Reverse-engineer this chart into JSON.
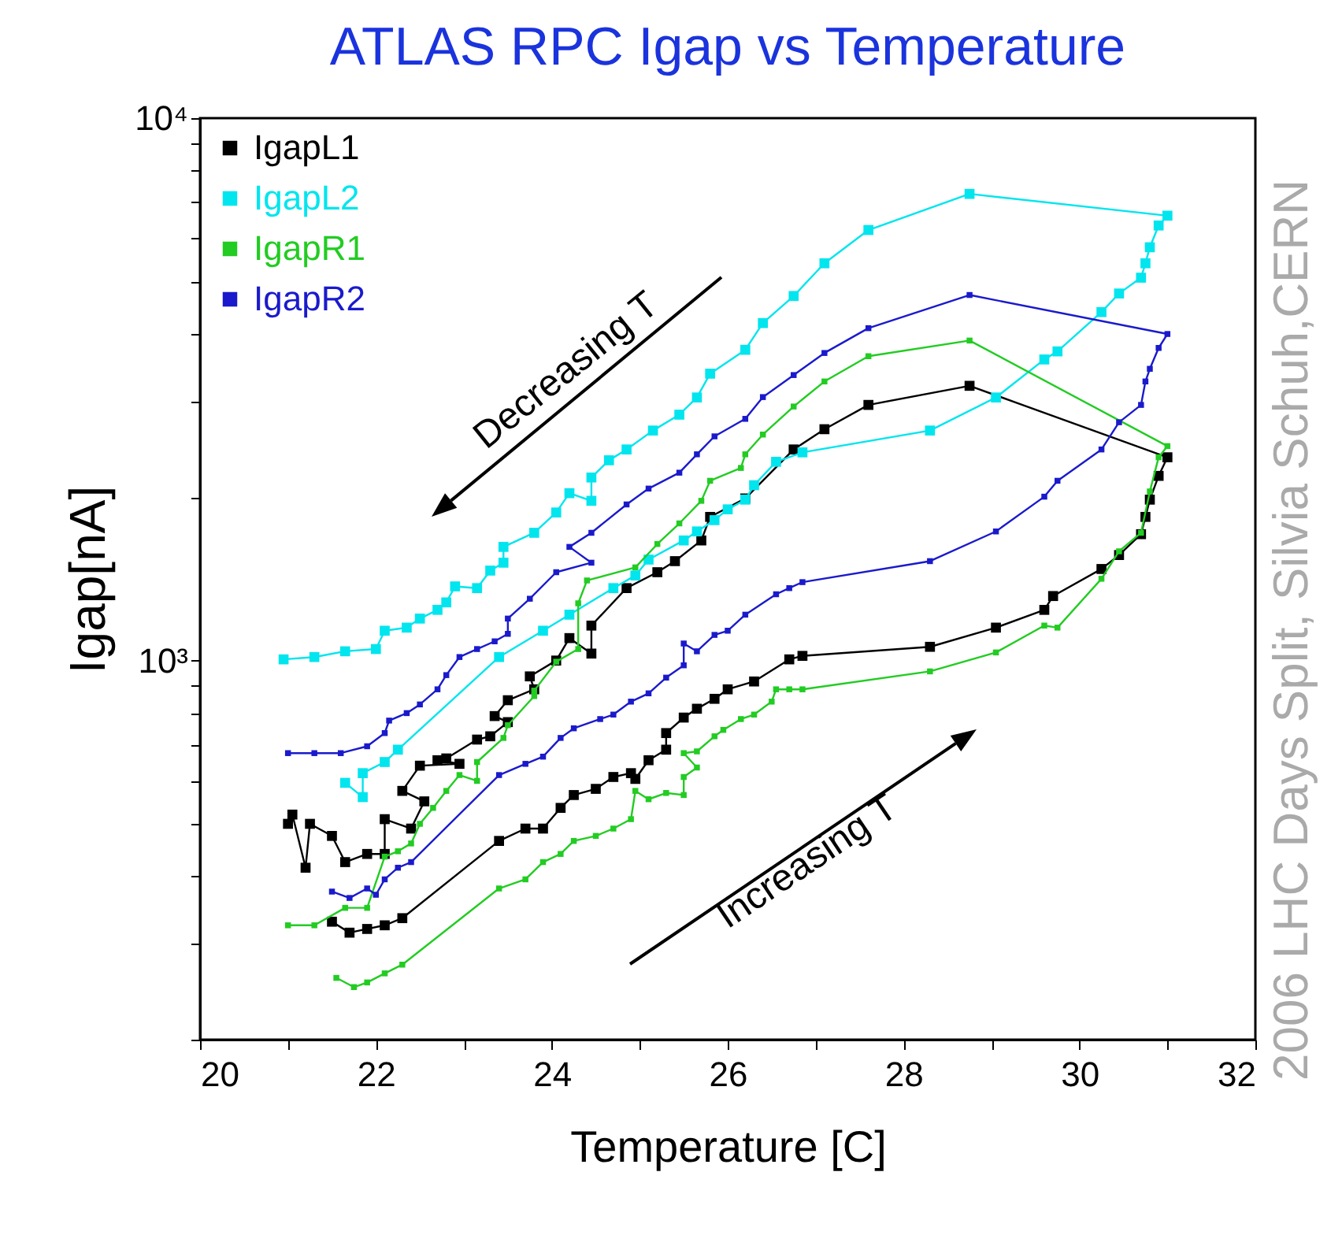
{
  "chart_data": {
    "type": "line",
    "title": "ATLAS RPC Igap vs Temperature",
    "xlabel": "Temperature [C]",
    "ylabel": "Igap[nA]",
    "annotations": [
      "Decreasing T",
      "Increasing T",
      "2006 LHC Days Split, Silvia Schuh,CERN"
    ],
    "xlim": [
      20,
      32
    ],
    "xticks": [
      20,
      {
        "value": 21,
        "label": null
      },
      22,
      {
        "value": 23,
        "label": null
      },
      24,
      {
        "value": 25,
        "label": null
      },
      26,
      {
        "value": 27,
        "label": null
      },
      28,
      {
        "value": 29,
        "label": null
      },
      30,
      {
        "value": 31,
        "label": null
      },
      32
    ],
    "ylim": [
      200,
      10000
    ],
    "log": "y",
    "yticks": [
      {
        "value": 200,
        "label": null
      },
      {
        "value": 300,
        "label": null
      },
      {
        "value": 400,
        "label": null
      },
      {
        "value": 500,
        "label": null
      },
      {
        "value": 600,
        "label": null
      },
      {
        "value": 700,
        "label": null
      },
      {
        "value": 800,
        "label": null
      },
      {
        "value": 900,
        "label": null
      },
      {
        "value": 1000,
        "label": "10³"
      },
      {
        "value": 2000,
        "label": null
      },
      {
        "value": 3000,
        "label": null
      },
      {
        "value": 4000,
        "label": null
      },
      {
        "value": 5000,
        "label": null
      },
      {
        "value": 6000,
        "label": null
      },
      {
        "value": 7000,
        "label": null
      },
      {
        "value": 8000,
        "label": null
      },
      {
        "value": 9000,
        "label": null
      },
      {
        "value": 10000,
        "label": "10⁴"
      }
    ],
    "legend": "top left",
    "marker": "square",
    "series": [
      {
        "name": "IgapL1",
        "color": "#000000",
        "x": [
          21.5,
          21.7,
          21.9,
          22.1,
          22.3,
          23.4,
          23.7,
          23.9,
          24.1,
          24.25,
          24.5,
          24.7,
          24.9,
          24.95,
          25.1,
          25.3,
          25.3,
          25.5,
          25.65,
          25.85,
          26.0,
          26.3,
          26.7,
          26.85,
          28.3,
          29.05,
          29.6,
          29.7,
          30.25,
          30.45,
          30.7,
          30.75,
          30.8,
          30.9,
          31.0,
          28.75,
          27.6,
          27.1,
          26.75,
          26.2,
          25.8,
          25.7,
          25.4,
          25.2,
          24.85,
          24.45,
          24.45,
          24.2,
          24.05,
          23.75,
          23.8,
          23.5,
          23.35,
          23.5,
          23.3,
          23.15,
          22.8,
          22.7,
          22.95,
          22.5,
          22.3,
          22.55,
          22.4,
          22.1,
          22.1,
          21.9,
          21.65,
          21.5,
          21.25,
          21.2,
          21.05,
          21.0
        ],
        "values": [
          330,
          315,
          320,
          325,
          335,
          465,
          490,
          490,
          535,
          565,
          580,
          610,
          620,
          605,
          655,
          685,
          735,
          785,
          815,
          850,
          885,
          915,
          1005,
          1020,
          1060,
          1150,
          1240,
          1315,
          1475,
          1565,
          1710,
          1840,
          1980,
          2190,
          2370,
          3210,
          2960,
          2670,
          2450,
          1990,
          1840,
          1665,
          1525,
          1455,
          1360,
          1160,
          1030,
          1100,
          1000,
          935,
          885,
          845,
          790,
          770,
          725,
          715,
          660,
          655,
          645,
          640,
          575,
          550,
          490,
          510,
          440,
          440,
          425,
          475,
          500,
          415,
          520,
          500
        ]
      },
      {
        "name": "IgapL2",
        "color": "#00e5ee",
        "x": [
          21.65,
          21.85,
          21.85,
          22.1,
          22.25,
          23.4,
          23.9,
          24.2,
          24.7,
          24.95,
          25.1,
          25.5,
          25.65,
          25.85,
          26.0,
          26.2,
          26.3,
          26.55,
          26.85,
          28.3,
          29.05,
          29.6,
          29.75,
          30.25,
          30.45,
          30.7,
          30.75,
          30.8,
          30.9,
          31.0,
          28.75,
          27.6,
          27.1,
          26.75,
          26.4,
          26.2,
          25.8,
          25.65,
          25.45,
          25.15,
          24.85,
          24.65,
          24.45,
          24.45,
          24.2,
          24.05,
          23.8,
          23.45,
          23.45,
          23.3,
          23.15,
          22.9,
          22.8,
          22.7,
          22.5,
          22.35,
          22.1,
          22.0,
          21.65,
          21.3,
          20.95
        ],
        "values": [
          595,
          560,
          620,
          650,
          685,
          1015,
          1135,
          1215,
          1360,
          1435,
          1535,
          1665,
          1730,
          1815,
          1900,
          1980,
          2105,
          2325,
          2420,
          2655,
          3055,
          3590,
          3715,
          4390,
          4750,
          5080,
          5400,
          5780,
          6340,
          6610,
          7250,
          6220,
          5400,
          4700,
          4190,
          3740,
          3380,
          3055,
          2840,
          2655,
          2450,
          2340,
          2175,
          1970,
          2035,
          1875,
          1720,
          1620,
          1515,
          1465,
          1360,
          1370,
          1280,
          1240,
          1195,
          1150,
          1135,
          1050,
          1040,
          1015,
          1005
        ]
      },
      {
        "name": "IgapR1",
        "color": "#22cc22",
        "x": [
          21.55,
          21.75,
          21.9,
          22.1,
          22.3,
          23.4,
          23.7,
          23.9,
          24.1,
          24.25,
          24.5,
          24.7,
          24.9,
          24.95,
          25.1,
          25.3,
          25.5,
          25.5,
          25.65,
          25.5,
          25.65,
          25.85,
          25.95,
          26.15,
          26.3,
          26.5,
          26.55,
          26.7,
          26.85,
          28.3,
          29.05,
          29.6,
          29.75,
          30.25,
          30.45,
          30.7,
          30.8,
          30.9,
          31.0,
          28.75,
          27.6,
          27.1,
          26.75,
          26.4,
          26.2,
          26.15,
          25.8,
          25.7,
          25.45,
          25.2,
          24.95,
          24.4,
          24.3,
          24.3,
          24.05,
          23.8,
          23.8,
          23.5,
          23.45,
          23.15,
          23.15,
          22.95,
          22.8,
          22.65,
          22.5,
          22.4,
          22.25,
          22.1,
          21.9,
          21.65,
          21.3,
          21.0
        ],
        "values": [
          260,
          250,
          255,
          265,
          275,
          380,
          395,
          425,
          440,
          465,
          475,
          490,
          510,
          575,
          555,
          570,
          565,
          610,
          635,
          675,
          680,
          725,
          745,
          780,
          795,
          840,
          885,
          885,
          885,
          955,
          1035,
          1160,
          1150,
          1415,
          1590,
          1720,
          2050,
          2370,
          2485,
          3890,
          3640,
          3270,
          2940,
          2610,
          2400,
          2265,
          2145,
          1970,
          1790,
          1640,
          1485,
          1405,
          1275,
          1050,
          995,
          880,
          860,
          760,
          720,
          650,
          600,
          615,
          575,
          535,
          500,
          460,
          445,
          435,
          350,
          350,
          325,
          325
        ]
      },
      {
        "name": "IgapR2",
        "color": "#1a1acc",
        "x": [
          21.5,
          21.7,
          21.9,
          22.0,
          22.1,
          22.25,
          22.4,
          23.4,
          23.7,
          23.9,
          24.1,
          24.25,
          24.55,
          24.7,
          24.9,
          25.1,
          25.3,
          25.5,
          25.5,
          25.65,
          25.85,
          26.0,
          26.2,
          26.55,
          26.7,
          26.85,
          28.3,
          29.05,
          29.6,
          29.75,
          30.25,
          30.45,
          30.7,
          30.75,
          30.8,
          30.9,
          31.0,
          28.75,
          27.6,
          27.1,
          26.75,
          26.4,
          26.2,
          25.85,
          25.65,
          25.45,
          25.1,
          24.85,
          24.45,
          24.2,
          24.45,
          24.05,
          23.75,
          23.5,
          23.5,
          23.35,
          23.15,
          22.95,
          22.8,
          22.7,
          22.5,
          22.35,
          22.15,
          22.1,
          21.9,
          21.6,
          21.3,
          21.0
        ],
        "values": [
          375,
          365,
          380,
          370,
          395,
          415,
          425,
          615,
          645,
          665,
          720,
          750,
          780,
          795,
          840,
          870,
          930,
          980,
          1075,
          1040,
          1115,
          1135,
          1215,
          1325,
          1360,
          1395,
          1525,
          1730,
          2005,
          2145,
          2450,
          2750,
          2960,
          3270,
          3450,
          3770,
          4000,
          4720,
          4100,
          3690,
          3360,
          3060,
          2790,
          2590,
          2400,
          2220,
          2075,
          1940,
          1720,
          1620,
          1515,
          1455,
          1300,
          1195,
          1120,
          1085,
          1050,
          1015,
          940,
          885,
          830,
          800,
          775,
          735,
          695,
          675,
          675,
          675
        ]
      }
    ]
  }
}
